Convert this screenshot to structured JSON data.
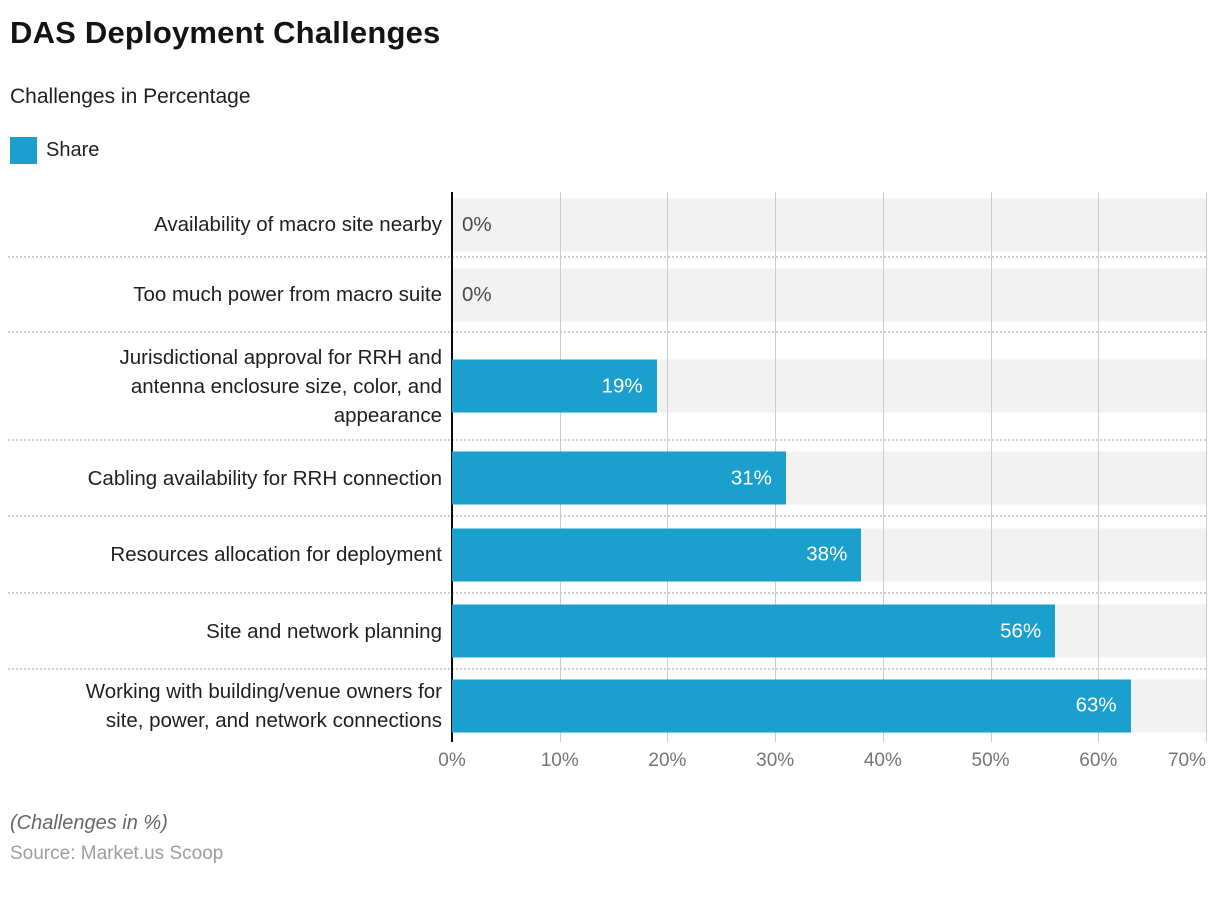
{
  "header": {
    "title": "DAS Deployment Challenges",
    "subtitle": "Challenges in Percentage",
    "legend": {
      "label": "Share"
    }
  },
  "chart_data": {
    "type": "bar",
    "orientation": "horizontal",
    "title": "DAS Deployment Challenges",
    "subtitle": "Challenges in Percentage",
    "series_name": "Share",
    "categories": [
      "Availability of macro site nearby",
      "Too much power from macro suite",
      "Jurisdictional approval for RRH and antenna enclosure size, color, and appearance",
      "Cabling availability for RRH connection",
      "Resources allocation for deployment",
      "Site and network planning",
      "Working with building/venue owners for site, power, and network connections"
    ],
    "category_lines": [
      [
        "Availability of macro site nearby"
      ],
      [
        "Too much power from macro suite"
      ],
      [
        "Jurisdictional approval for RRH and",
        "antenna enclosure size, color, and",
        "appearance"
      ],
      [
        "Cabling availability for RRH connection"
      ],
      [
        "Resources allocation for deployment"
      ],
      [
        "Site and network planning"
      ],
      [
        "Working with building/venue owners for",
        "site, power, and network connections"
      ]
    ],
    "values": [
      0,
      0,
      19,
      31,
      38,
      56,
      63
    ],
    "value_labels": [
      "0%",
      "0%",
      "19%",
      "31%",
      "38%",
      "56%",
      "63%"
    ],
    "xlim": [
      0,
      70
    ],
    "x_ticks": [
      "0%",
      "10%",
      "20%",
      "30%",
      "40%",
      "50%",
      "60%",
      "70%"
    ],
    "grid": true,
    "legend_position": "top-left",
    "bar_color": "#1b9fcc",
    "row_band_color": "#f2f2f2",
    "gridline_color": "#cccccc",
    "axis_line_color": "#0a0a0a"
  },
  "footer": {
    "note": "(Challenges in %)",
    "source": "Source: Market.us Scoop"
  }
}
